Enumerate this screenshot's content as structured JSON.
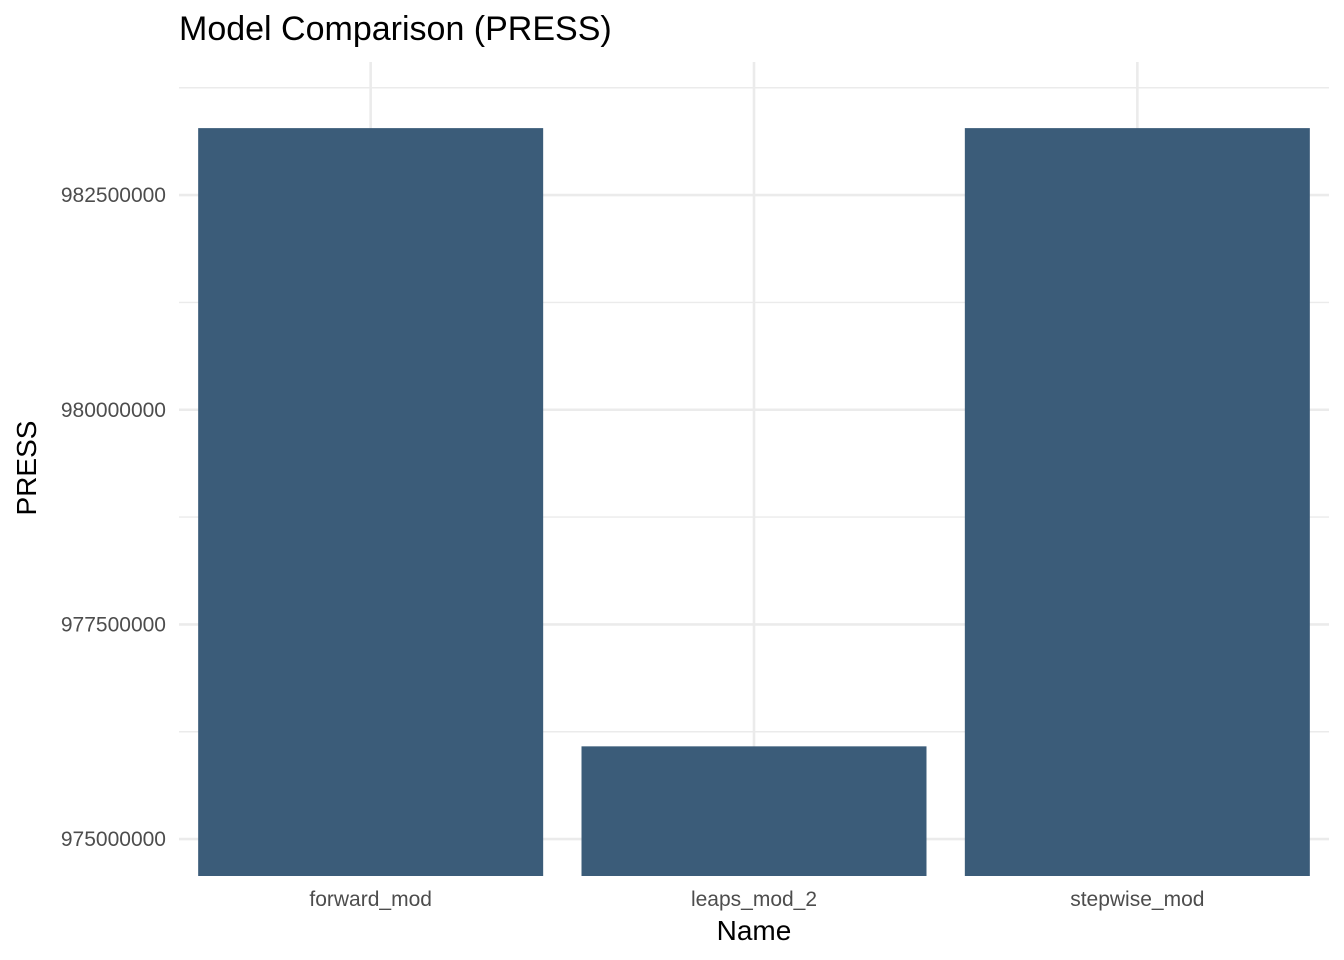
{
  "chart_data": {
    "type": "bar",
    "title": "Model Comparison (PRESS)",
    "xlabel": "Name",
    "ylabel": "PRESS",
    "categories": [
      "forward_mod",
      "leaps_mod_2",
      "stepwise_mod"
    ],
    "values": [
      983280000,
      976080000,
      983280000
    ],
    "ylim": [
      974570000,
      984050000
    ],
    "yticks": [
      975000000,
      977500000,
      980000000,
      982500000
    ],
    "ytick_labels": [
      "975000000",
      "977500000",
      "980000000",
      "982500000"
    ],
    "y_minor_ticks": [
      976250000,
      978750000,
      981250000,
      983750000
    ],
    "grid": true,
    "legend": "none",
    "bar_color": "#3b5c79"
  }
}
